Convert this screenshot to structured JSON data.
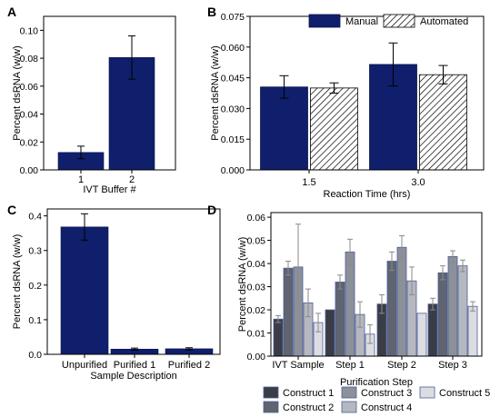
{
  "colors": {
    "manual": "#0f1f6b",
    "frame": "#000000",
    "construct_1": "#3a3d46",
    "construct_2": "#5f6470",
    "construct_3": "#8c9099",
    "construct_4": "#b6b8bf",
    "construct_5": "#dcdde1"
  },
  "chart_data": [
    {
      "panel": "A",
      "type": "bar",
      "xlabel": "IVT Buffer #",
      "ylabel": "Percent dsRNA (w/w)",
      "ylim": [
        0,
        0.11
      ],
      "yticks": [
        "0.00",
        "0.02",
        "0.04",
        "0.06",
        "0.08",
        "0.10"
      ],
      "categories": [
        "1",
        "2"
      ],
      "values": [
        0.0125,
        0.0805
      ],
      "errors": [
        0.0045,
        0.0155
      ]
    },
    {
      "panel": "B",
      "type": "bar",
      "xlabel": "Reaction Time (hrs)",
      "ylabel": "Percent dsRNA (w/w)",
      "ylim": [
        0,
        0.075
      ],
      "yticks": [
        "0.000",
        "0.015",
        "0.030",
        "0.045",
        "0.060",
        "0.075"
      ],
      "categories": [
        "1.5",
        "3.0"
      ],
      "legend_position": "top",
      "series": [
        {
          "name": "Manual",
          "values": [
            0.0405,
            0.0515
          ],
          "errors": [
            0.0055,
            0.0105
          ]
        },
        {
          "name": "Automated",
          "values": [
            0.04,
            0.0465
          ],
          "errors": [
            0.0025,
            0.0045
          ]
        }
      ]
    },
    {
      "panel": "C",
      "type": "bar",
      "xlabel": "Sample Description",
      "ylabel": "Percent dsRNA (w/w)",
      "ylim": [
        0,
        0.42
      ],
      "yticks": [
        "0.0",
        "0.1",
        "0.2",
        "0.3",
        "0.4"
      ],
      "categories": [
        "Unpurified",
        "Purified 1",
        "Purified 2"
      ],
      "values": [
        0.368,
        0.015,
        0.016
      ],
      "errors": [
        0.038,
        0.003,
        0.003
      ]
    },
    {
      "panel": "D",
      "type": "bar",
      "xlabel": "Purification Step",
      "ylabel": "Percent dsRNA (w/w)",
      "ylim": [
        0,
        0.062
      ],
      "yticks": [
        "0.00",
        "0.01",
        "0.02",
        "0.03",
        "0.04",
        "0.05",
        "0.06"
      ],
      "categories": [
        "IVT Sample",
        "Step 1",
        "Step 2",
        "Step 3"
      ],
      "legend_position": "bottom",
      "series": [
        {
          "name": "Construct 1",
          "values": [
            0.016,
            0.02,
            0.0225,
            0.0225
          ],
          "errors": [
            0.0015,
            0.0,
            0.004,
            0.0025
          ]
        },
        {
          "name": "Construct 2",
          "values": [
            0.038,
            0.032,
            0.041,
            0.036
          ],
          "errors": [
            0.003,
            0.003,
            0.004,
            0.003
          ]
        },
        {
          "name": "Construct 3",
          "values": [
            0.0385,
            0.045,
            0.047,
            0.043
          ],
          "errors": [
            0.0185,
            0.0055,
            0.005,
            0.0025
          ]
        },
        {
          "name": "Construct 4",
          "values": [
            0.023,
            0.018,
            0.0325,
            0.039
          ],
          "errors": [
            0.006,
            0.0055,
            0.006,
            0.0025
          ]
        },
        {
          "name": "Construct 5",
          "values": [
            0.0145,
            0.0095,
            0.0185,
            0.0215
          ],
          "errors": [
            0.004,
            0.004,
            0.0,
            0.002
          ]
        }
      ]
    }
  ]
}
